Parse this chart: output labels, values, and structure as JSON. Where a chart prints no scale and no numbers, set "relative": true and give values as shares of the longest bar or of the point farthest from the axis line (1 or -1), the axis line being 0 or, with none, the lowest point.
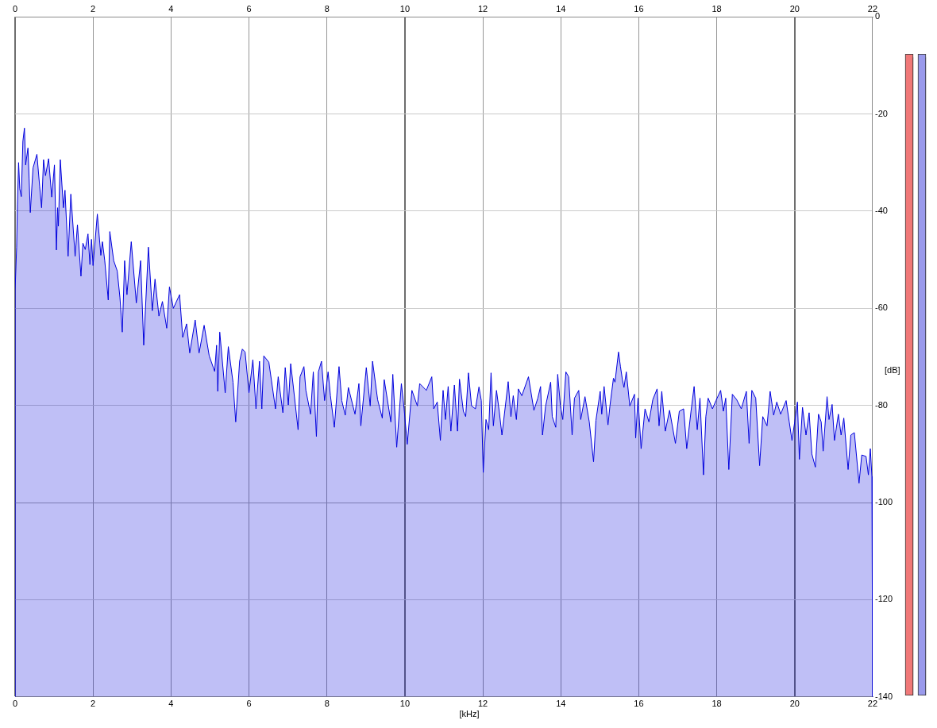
{
  "chart_data": [
    {
      "type": "area",
      "xlabel": "[kHz]",
      "ylabel": "[dB]",
      "color": "#0000dd",
      "marker": "none",
      "grid": true,
      "xlim": [
        0,
        22
      ],
      "xticks": [
        0,
        2,
        4,
        6,
        8,
        10,
        12,
        14,
        16,
        18,
        20,
        22
      ],
      "x2lim": [
        0,
        22
      ],
      "x2ticks": [
        0,
        2,
        4,
        6,
        8,
        10,
        12,
        14,
        16,
        18,
        20,
        22
      ],
      "ylim": [
        -140,
        0
      ],
      "yticks": [
        -140,
        -120,
        -100,
        -80,
        -60,
        -40,
        -20,
        0
      ],
      "x": [
        0,
        0,
        0.04,
        0.06,
        0.09,
        0.12,
        0.16,
        0.2,
        0.24,
        0.27,
        0.33,
        0.36,
        0.39,
        0.46,
        0.56,
        0.63,
        0.68,
        0.73,
        0.78,
        0.86,
        0.94,
        1.01,
        1.06,
        1.09,
        1.11,
        1.16,
        1.24,
        1.28,
        1.36,
        1.43,
        1.54,
        1.6,
        1.69,
        1.74,
        1.8,
        1.87,
        1.92,
        1.96,
        2,
        2.11,
        2.2,
        2.24,
        2.3,
        2.39,
        2.43,
        2.53,
        2.62,
        2.69,
        2.75,
        2.81,
        2.87,
        2.98,
        3.11,
        3.22,
        3.3,
        3.42,
        3.52,
        3.59,
        3.69,
        3.78,
        3.89,
        3.96,
        4.06,
        4.22,
        4.3,
        4.4,
        4.48,
        4.62,
        4.72,
        4.85,
        4.98,
        5.12,
        5.17,
        5.2,
        5.25,
        5.39,
        5.47,
        5.59,
        5.66,
        5.76,
        5.83,
        5.9,
        6,
        6.1,
        6.18,
        6.27,
        6.33,
        6.38,
        6.51,
        6.68,
        6.75,
        6.87,
        6.93,
        7.01,
        7.07,
        7.14,
        7.26,
        7.31,
        7.41,
        7.46,
        7.58,
        7.65,
        7.73,
        7.78,
        7.86,
        7.94,
        8.03,
        8.09,
        8.19,
        8.31,
        8.38,
        8.47,
        8.55,
        8.72,
        8.82,
        8.87,
        9.01,
        9.11,
        9.17,
        9.3,
        9.42,
        9.47,
        9.64,
        9.69,
        9.79,
        9.91,
        9.98,
        10.06,
        10.18,
        10.32,
        10.38,
        10.55,
        10.69,
        10.74,
        10.83,
        10.91,
        10.98,
        11.04,
        11.11,
        11.18,
        11.27,
        11.35,
        11.4,
        11.5,
        11.56,
        11.63,
        11.71,
        11.81,
        11.9,
        11.96,
        12.01,
        12.08,
        12.15,
        12.21,
        12.27,
        12.35,
        12.42,
        12.49,
        12.65,
        12.72,
        12.78,
        12.86,
        12.91,
        13,
        13.17,
        13.31,
        13.41,
        13.48,
        13.53,
        13.61,
        13.74,
        13.78,
        13.87,
        13.92,
        13.99,
        14.05,
        14.13,
        14.2,
        14.29,
        14.35,
        14.46,
        14.51,
        14.62,
        14.73,
        14.84,
        14.9,
        15.01,
        15.05,
        15.11,
        15.21,
        15.26,
        15.35,
        15.39,
        15.48,
        15.53,
        15.58,
        15.62,
        15.68,
        15.77,
        15.89,
        15.92,
        15.98,
        16.06,
        16.16,
        16.26,
        16.36,
        16.47,
        16.52,
        16.59,
        16.68,
        16.79,
        16.94,
        17.04,
        17.15,
        17.23,
        17.34,
        17.42,
        17.5,
        17.57,
        17.66,
        17.72,
        17.78,
        17.89,
        17.98,
        18.1,
        18.17,
        18.23,
        18.31,
        18.4,
        18.51,
        18.63,
        18.76,
        18.83,
        18.9,
        19,
        19.1,
        19.18,
        19.29,
        19.37,
        19.46,
        19.54,
        19.64,
        19.78,
        19.86,
        19.93,
        20,
        20.07,
        20.12,
        20.2,
        20.29,
        20.37,
        20.44,
        20.53,
        20.61,
        20.68,
        20.73,
        20.83,
        20.88,
        20.96,
        21.02,
        21.12,
        21.19,
        21.26,
        21.37,
        21.44,
        21.53,
        21.65,
        21.72,
        21.83,
        21.89,
        21.94,
        21.98,
        22
      ],
      "values": [
        -140,
        -56.4,
        -47.4,
        -38.7,
        -30,
        -35.4,
        -37,
        -25.6,
        -22.9,
        -30.5,
        -27,
        -33.3,
        -40.3,
        -31.1,
        -28.3,
        -34.9,
        -39.3,
        -29.4,
        -32.7,
        -29.2,
        -37.1,
        -30.5,
        -48,
        -39.3,
        -43.1,
        -29.4,
        -39.3,
        -35.7,
        -49.3,
        -36.5,
        -49.3,
        -42.8,
        -53.4,
        -46.6,
        -47.9,
        -44.7,
        -51,
        -45.8,
        -51.2,
        -40.6,
        -49.1,
        -46.3,
        -50.2,
        -58.3,
        -44.2,
        -50.2,
        -52.3,
        -57.8,
        -64.9,
        -50.2,
        -57.2,
        -46.3,
        -58.9,
        -50.2,
        -67.6,
        -47.4,
        -60.5,
        -54,
        -61.6,
        -58.6,
        -64.1,
        -55.6,
        -60,
        -57.2,
        -66,
        -63.2,
        -69.2,
        -62.4,
        -69.2,
        -63.5,
        -69.8,
        -73,
        -67.6,
        -77.1,
        -64.9,
        -77.4,
        -67.9,
        -75.2,
        -83.4,
        -70.9,
        -68.4,
        -69,
        -77.4,
        -70.6,
        -80.7,
        -70.9,
        -80.7,
        -69.8,
        -71.1,
        -80.7,
        -74.1,
        -81.5,
        -72.2,
        -79.9,
        -71.4,
        -76.3,
        -85,
        -74.1,
        -72,
        -76.9,
        -81.8,
        -73.1,
        -86.4,
        -73.1,
        -70.9,
        -79,
        -73.1,
        -78,
        -84.5,
        -72,
        -79,
        -82,
        -76.3,
        -81.8,
        -75.5,
        -84.2,
        -72.2,
        -80.1,
        -70.9,
        -78.8,
        -82.6,
        -74.7,
        -83.4,
        -73.6,
        -88.6,
        -75.5,
        -80.7,
        -88,
        -76.9,
        -80.1,
        -75.5,
        -76.9,
        -74.1,
        -80.7,
        -79.3,
        -87.2,
        -76.9,
        -82.9,
        -76.1,
        -85.3,
        -75.8,
        -85.3,
        -74.6,
        -81.2,
        -82.3,
        -73.3,
        -80.1,
        -80.7,
        -76.2,
        -79,
        -93.8,
        -82.9,
        -85,
        -73.3,
        -84.2,
        -76.9,
        -81.2,
        -86.1,
        -75.1,
        -82.3,
        -78,
        -82.9,
        -76.6,
        -78,
        -74.1,
        -81,
        -78.5,
        -76.1,
        -86.1,
        -80.1,
        -75.2,
        -82.3,
        -84.5,
        -73.6,
        -80.1,
        -82.9,
        -73.1,
        -74.1,
        -86.1,
        -78.5,
        -76.9,
        -82.9,
        -78.2,
        -83.4,
        -91.6,
        -83.1,
        -77.1,
        -81.8,
        -76.1,
        -84,
        -80.1,
        -74.4,
        -75.2,
        -69,
        -72,
        -74.7,
        -76.3,
        -73.1,
        -80.1,
        -77.7,
        -86.7,
        -78.5,
        -88.9,
        -80.7,
        -83.4,
        -78.8,
        -76.6,
        -84.2,
        -77.1,
        -85.3,
        -81,
        -87.8,
        -81.2,
        -80.7,
        -88.9,
        -81.2,
        -76.1,
        -85,
        -78.5,
        -94.3,
        -82.3,
        -78.5,
        -80.7,
        -79,
        -76.9,
        -81.2,
        -78.5,
        -93.2,
        -77.7,
        -78.8,
        -80.7,
        -77.1,
        -87.8,
        -76.9,
        -78.5,
        -92.4,
        -82.3,
        -84.2,
        -77.1,
        -82,
        -79.3,
        -81.8,
        -79,
        -83.4,
        -87.2,
        -83.4,
        -79.3,
        -91.1,
        -80.4,
        -86.1,
        -81.5,
        -90,
        -92.7,
        -81.8,
        -83.4,
        -89.4,
        -78.2,
        -82.9,
        -79.8,
        -87.2,
        -81.8,
        -86.1,
        -82.6,
        -93.2,
        -86.1,
        -85.6,
        -96,
        -90.2,
        -90.5,
        -94.3,
        -88.9,
        -94.6,
        -140
      ]
    },
    {
      "type": "bar",
      "relative": true,
      "categories": [
        null,
        null
      ],
      "values": [
        1,
        1
      ],
      "colors": [
        "#f07878",
        "#9a9aec"
      ]
    }
  ]
}
